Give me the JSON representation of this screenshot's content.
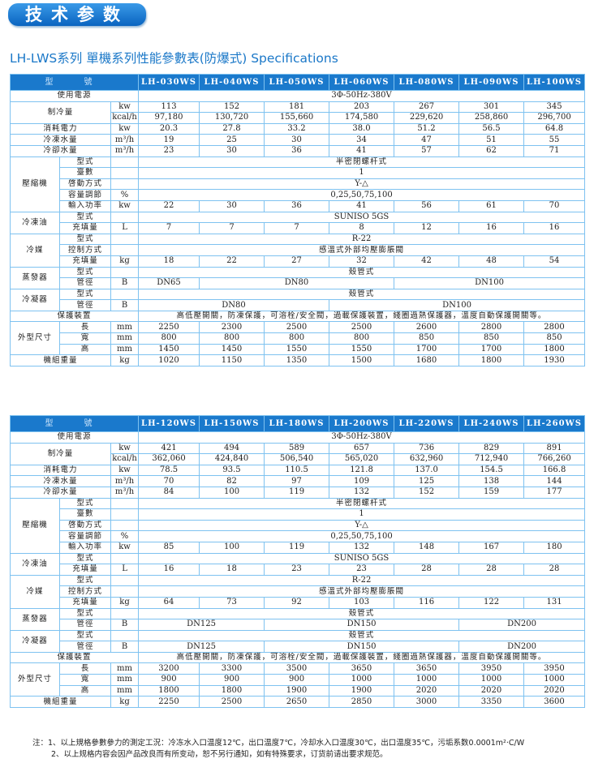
{
  "badge": "技术参数",
  "title": "LH-LWS系列 單機系列性能參數表(防爆式) Specifications",
  "colors": {
    "header_bg": "#1a79cc",
    "border": "#7ec2f0",
    "title": "#1b78c8"
  },
  "model_label": "型　號",
  "tables": [
    {
      "models": [
        "LH-030WS",
        "LH-040WS",
        "LH-050WS",
        "LH-060WS",
        "LH-080WS",
        "LH-090WS",
        "LH-100WS"
      ],
      "rows": [
        {
          "g": "使用電源",
          "v": [
            {
              "t": "3Φ-50Hz-380V",
              "span": 7
            }
          ]
        },
        {
          "g": "制冷量",
          "u": "kw",
          "v": [
            "113",
            "152",
            "181",
            "203",
            "267",
            "301",
            "345"
          ]
        },
        {
          "g": "制冷量",
          "u": "kcal/h",
          "v": [
            "97,180",
            "130,720",
            "155,660",
            "174,580",
            "229,620",
            "258,860",
            "296,700"
          ]
        },
        {
          "g": "消耗電力",
          "u": "kw",
          "v": [
            "20.3",
            "27.8",
            "33.2",
            "38.0",
            "51.2",
            "56.5",
            "64.8"
          ]
        },
        {
          "g": "冷凍水量",
          "u": "m³/h",
          "v": [
            "19",
            "25",
            "30",
            "34",
            "47",
            "51",
            "55"
          ]
        },
        {
          "g": "冷卻水量",
          "u": "m³/h",
          "v": [
            "23",
            "30",
            "36",
            "41",
            "57",
            "62",
            "71"
          ]
        },
        {
          "g": "壓縮機",
          "s": "型式",
          "u": "",
          "v": [
            {
              "t": "半密閉螺杆式",
              "span": 7
            }
          ]
        },
        {
          "g": "壓縮機",
          "s": "臺數",
          "u": "",
          "v": [
            {
              "t": "1",
              "span": 7
            }
          ]
        },
        {
          "g": "壓縮機",
          "s": "啓動方式",
          "u": "",
          "v": [
            {
              "t": "Y-△",
              "span": 7
            }
          ]
        },
        {
          "g": "壓縮機",
          "s": "容量調節",
          "u": "%",
          "v": [
            {
              "t": "0,25,50,75,100",
              "span": 7
            }
          ]
        },
        {
          "g": "壓縮機",
          "s": "輸入功率",
          "u": "kw",
          "v": [
            "22",
            "30",
            "36",
            "41",
            "56",
            "61",
            "70"
          ]
        },
        {
          "g": "冷凍油",
          "s": "型式",
          "u": "",
          "v": [
            {
              "t": "SUNISO 5GS",
              "span": 7
            }
          ]
        },
        {
          "g": "冷凍油",
          "s": "充填量",
          "u": "L",
          "v": [
            "7",
            "7",
            "7",
            "8",
            "12",
            "16",
            "16"
          ]
        },
        {
          "g": "冷媒",
          "s": "型式",
          "u": "",
          "v": [
            {
              "t": "R-22",
              "span": 7
            }
          ]
        },
        {
          "g": "冷媒",
          "s": "控制方式",
          "u": "",
          "v": [
            {
              "t": "感溫式外部均壓膨脹閥",
              "span": 7
            }
          ]
        },
        {
          "g": "冷媒",
          "s": "充填量",
          "u": "kg",
          "v": [
            "18",
            "22",
            "27",
            "32",
            "42",
            "48",
            "54"
          ]
        },
        {
          "g": "蒸發器",
          "s": "型式",
          "u": "",
          "v": [
            {
              "t": "殼管式",
              "span": 7
            }
          ]
        },
        {
          "g": "蒸發器",
          "s": "管徑",
          "u": "B",
          "v": [
            {
              "t": "DN65",
              "span": 1
            },
            {
              "t": "DN80",
              "span": 3
            },
            {
              "t": "DN100",
              "span": 3
            }
          ]
        },
        {
          "g": "冷凝器",
          "s": "型式",
          "u": "",
          "v": [
            {
              "t": "殼管式",
              "span": 7
            }
          ]
        },
        {
          "g": "冷凝器",
          "s": "管徑",
          "u": "B",
          "v": [
            {
              "t": "DN80",
              "span": 3
            },
            {
              "t": "DN100",
              "span": 4
            }
          ]
        },
        {
          "g": "保護裝置",
          "v": [
            {
              "t": "高低壓開關，防凍保護，可溶栓/安全閥，過載保護裝置，綫圈過熱保護器，溫度自動保護開關等。",
              "span": 7
            }
          ]
        },
        {
          "g": "外型尺寸",
          "s": "長",
          "u": "mm",
          "v": [
            "2250",
            "2300",
            "2500",
            "2500",
            "2600",
            "2800",
            "2800"
          ]
        },
        {
          "g": "外型尺寸",
          "s": "寬",
          "u": "mm",
          "v": [
            "800",
            "800",
            "800",
            "800",
            "850",
            "850",
            "850"
          ]
        },
        {
          "g": "外型尺寸",
          "s": "高",
          "u": "mm",
          "v": [
            "1450",
            "1450",
            "1550",
            "1550",
            "1700",
            "1700",
            "1800"
          ]
        },
        {
          "g": "機組重量",
          "u": "kg",
          "v": [
            "1020",
            "1150",
            "1350",
            "1500",
            "1680",
            "1800",
            "1930"
          ]
        }
      ]
    },
    {
      "models": [
        "LH-120WS",
        "LH-150WS",
        "LH-180WS",
        "LH-200WS",
        "LH-220WS",
        "LH-240WS",
        "LH-260WS"
      ],
      "rows": [
        {
          "g": "使用電源",
          "v": [
            {
              "t": "3Φ-50Hz-380V",
              "span": 7
            }
          ]
        },
        {
          "g": "制冷量",
          "u": "kw",
          "v": [
            "421",
            "494",
            "589",
            "657",
            "736",
            "829",
            "891"
          ]
        },
        {
          "g": "制冷量",
          "u": "kcal/h",
          "v": [
            "362,060",
            "424,840",
            "506,540",
            "565,020",
            "632,960",
            "712,940",
            "766,260"
          ]
        },
        {
          "g": "消耗電力",
          "u": "kw",
          "v": [
            "78.5",
            "93.5",
            "110.5",
            "121.8",
            "137.0",
            "154.5",
            "166.8"
          ]
        },
        {
          "g": "冷凍水量",
          "u": "m³/h",
          "v": [
            "70",
            "82",
            "97",
            "109",
            "125",
            "138",
            "144"
          ]
        },
        {
          "g": "冷卻水量",
          "u": "m³/h",
          "v": [
            "84",
            "100",
            "119",
            "132",
            "152",
            "159",
            "177"
          ]
        },
        {
          "g": "壓縮機",
          "s": "型式",
          "u": "",
          "v": [
            {
              "t": "半密閉螺杆式",
              "span": 7
            }
          ]
        },
        {
          "g": "壓縮機",
          "s": "臺數",
          "u": "",
          "v": [
            {
              "t": "1",
              "span": 7
            }
          ]
        },
        {
          "g": "壓縮機",
          "s": "啓動方式",
          "u": "",
          "v": [
            {
              "t": "Y-△",
              "span": 7
            }
          ]
        },
        {
          "g": "壓縮機",
          "s": "容量調節",
          "u": "%",
          "v": [
            {
              "t": "0,25,50,75,100",
              "span": 7
            }
          ]
        },
        {
          "g": "壓縮機",
          "s": "輸入功率",
          "u": "kw",
          "v": [
            "85",
            "100",
            "119",
            "132",
            "148",
            "167",
            "180"
          ]
        },
        {
          "g": "冷凍油",
          "s": "型式",
          "u": "",
          "v": [
            {
              "t": "SUNISO 5GS",
              "span": 7
            }
          ]
        },
        {
          "g": "冷凍油",
          "s": "充填量",
          "u": "L",
          "v": [
            "16",
            "18",
            "23",
            "23",
            "28",
            "28",
            "28"
          ]
        },
        {
          "g": "冷媒",
          "s": "型式",
          "u": "",
          "v": [
            {
              "t": "R-22",
              "span": 7
            }
          ]
        },
        {
          "g": "冷媒",
          "s": "控制方式",
          "u": "",
          "v": [
            {
              "t": "感溫式外部均壓膨脹閥",
              "span": 7
            }
          ]
        },
        {
          "g": "冷媒",
          "s": "充填量",
          "u": "kg",
          "v": [
            "64",
            "73",
            "92",
            "103",
            "116",
            "122",
            "131"
          ]
        },
        {
          "g": "蒸發器",
          "s": "型式",
          "u": "",
          "v": [
            {
              "t": "殼管式",
              "span": 7
            }
          ]
        },
        {
          "g": "蒸發器",
          "s": "管徑",
          "u": "B",
          "v": [
            {
              "t": "DN125",
              "span": 2
            },
            {
              "t": "DN150",
              "span": 3
            },
            {
              "t": "DN200",
              "span": 2
            }
          ]
        },
        {
          "g": "冷凝器",
          "s": "型式",
          "u": "",
          "v": [
            {
              "t": "殼管式",
              "span": 7
            }
          ]
        },
        {
          "g": "冷凝器",
          "s": "管徑",
          "u": "B",
          "v": [
            {
              "t": "DN125",
              "span": 2
            },
            {
              "t": "DN150",
              "span": 3
            },
            {
              "t": "DN200",
              "span": 2
            }
          ]
        },
        {
          "g": "保護裝置",
          "v": [
            {
              "t": "高低壓開關，防凍保護，可溶栓/安全閥，過載保護裝置，綫圈過熱保護器，溫度自動保護開關等。",
              "span": 7
            }
          ]
        },
        {
          "g": "外型尺寸",
          "s": "長",
          "u": "mm",
          "v": [
            "3200",
            "3300",
            "3500",
            "3650",
            "3650",
            "3950",
            "3950"
          ]
        },
        {
          "g": "外型尺寸",
          "s": "寬",
          "u": "mm",
          "v": [
            "900",
            "900",
            "900",
            "1000",
            "1000",
            "1000",
            "1000"
          ]
        },
        {
          "g": "外型尺寸",
          "s": "高",
          "u": "mm",
          "v": [
            "1800",
            "1800",
            "1900",
            "1900",
            "2020",
            "2020",
            "2020"
          ]
        },
        {
          "g": "機組重量",
          "u": "kg",
          "v": [
            "2250",
            "2500",
            "2650",
            "2850",
            "3000",
            "3350",
            "3600"
          ]
        }
      ]
    }
  ],
  "notes": [
    "注：1、以上規格參數參力的測定工況：冷冻水入口温度12℃，出口温度7℃，冷却水入口温度30℃，出口温度35℃，污垢系数0.0001m²·C/W",
    "2、以上规格内容会因产品改良而有所变动，恕不另行通知，如有特殊要求，订货前请出要求规范。"
  ]
}
